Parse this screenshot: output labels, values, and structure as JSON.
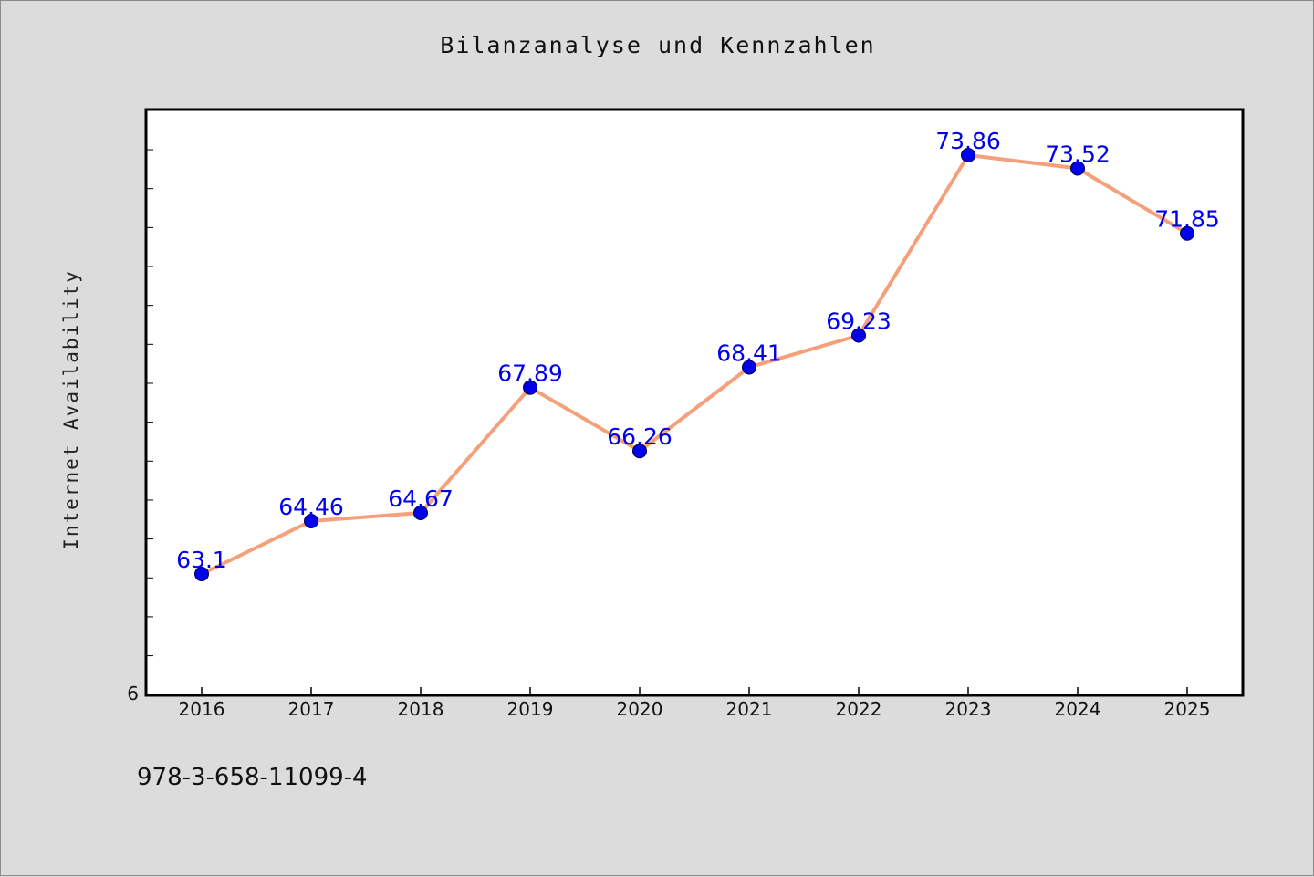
{
  "chart_data": {
    "type": "line",
    "title": "Bilanzanalyse und Kennzahlen",
    "xlabel": "",
    "ylabel": "Internet Availability",
    "categories": [
      "2016",
      "2017",
      "2018",
      "2019",
      "2020",
      "2021",
      "2022",
      "2023",
      "2024",
      "2025"
    ],
    "series": [
      {
        "values": [
          63.1,
          64.46,
          64.67,
          67.89,
          66.26,
          68.41,
          69.23,
          73.86,
          73.52,
          71.85
        ]
      }
    ],
    "y_tick_labels": [
      "6"
    ],
    "ylim": [
      60,
      75
    ],
    "grid": false,
    "legend": "none",
    "line_color": "#f5a07a",
    "marker_color": "#0000ee",
    "label_color": "#0000ee"
  },
  "footer": {
    "text": "978-3-658-11099-4"
  }
}
